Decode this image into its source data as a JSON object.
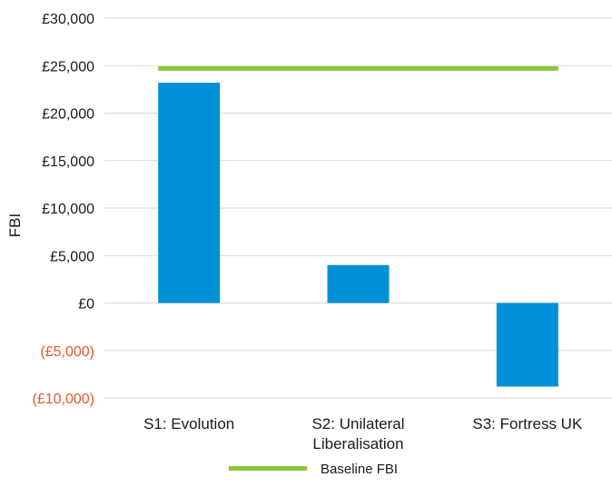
{
  "chart_data": {
    "type": "bar",
    "ylabel": "FBI",
    "ylim": [
      -10000,
      30000
    ],
    "yticks": [
      30000,
      25000,
      20000,
      15000,
      10000,
      5000,
      0,
      -5000,
      -10000
    ],
    "ytick_labels": [
      "£30,000",
      "£25,000",
      "£20,000",
      "£15,000",
      "£10,000",
      "£5,000",
      "£0",
      "(£5,000)",
      "(£10,000)"
    ],
    "categories": [
      [
        "S1: Evolution"
      ],
      [
        "S2: Unilateral",
        "Liberalisation"
      ],
      [
        "S3: Fortress UK"
      ]
    ],
    "values": [
      23200,
      4000,
      -8800
    ],
    "baseline": {
      "name": "Baseline FBI",
      "value": 24700
    },
    "grid": true,
    "legend_position": "bottom"
  },
  "colors": {
    "bar": "#0090d8",
    "baseline": "#8cc63f",
    "grid": "#d9d9d9",
    "positive_tick": "#1a1a1a",
    "negative_tick": "#e8562a"
  }
}
